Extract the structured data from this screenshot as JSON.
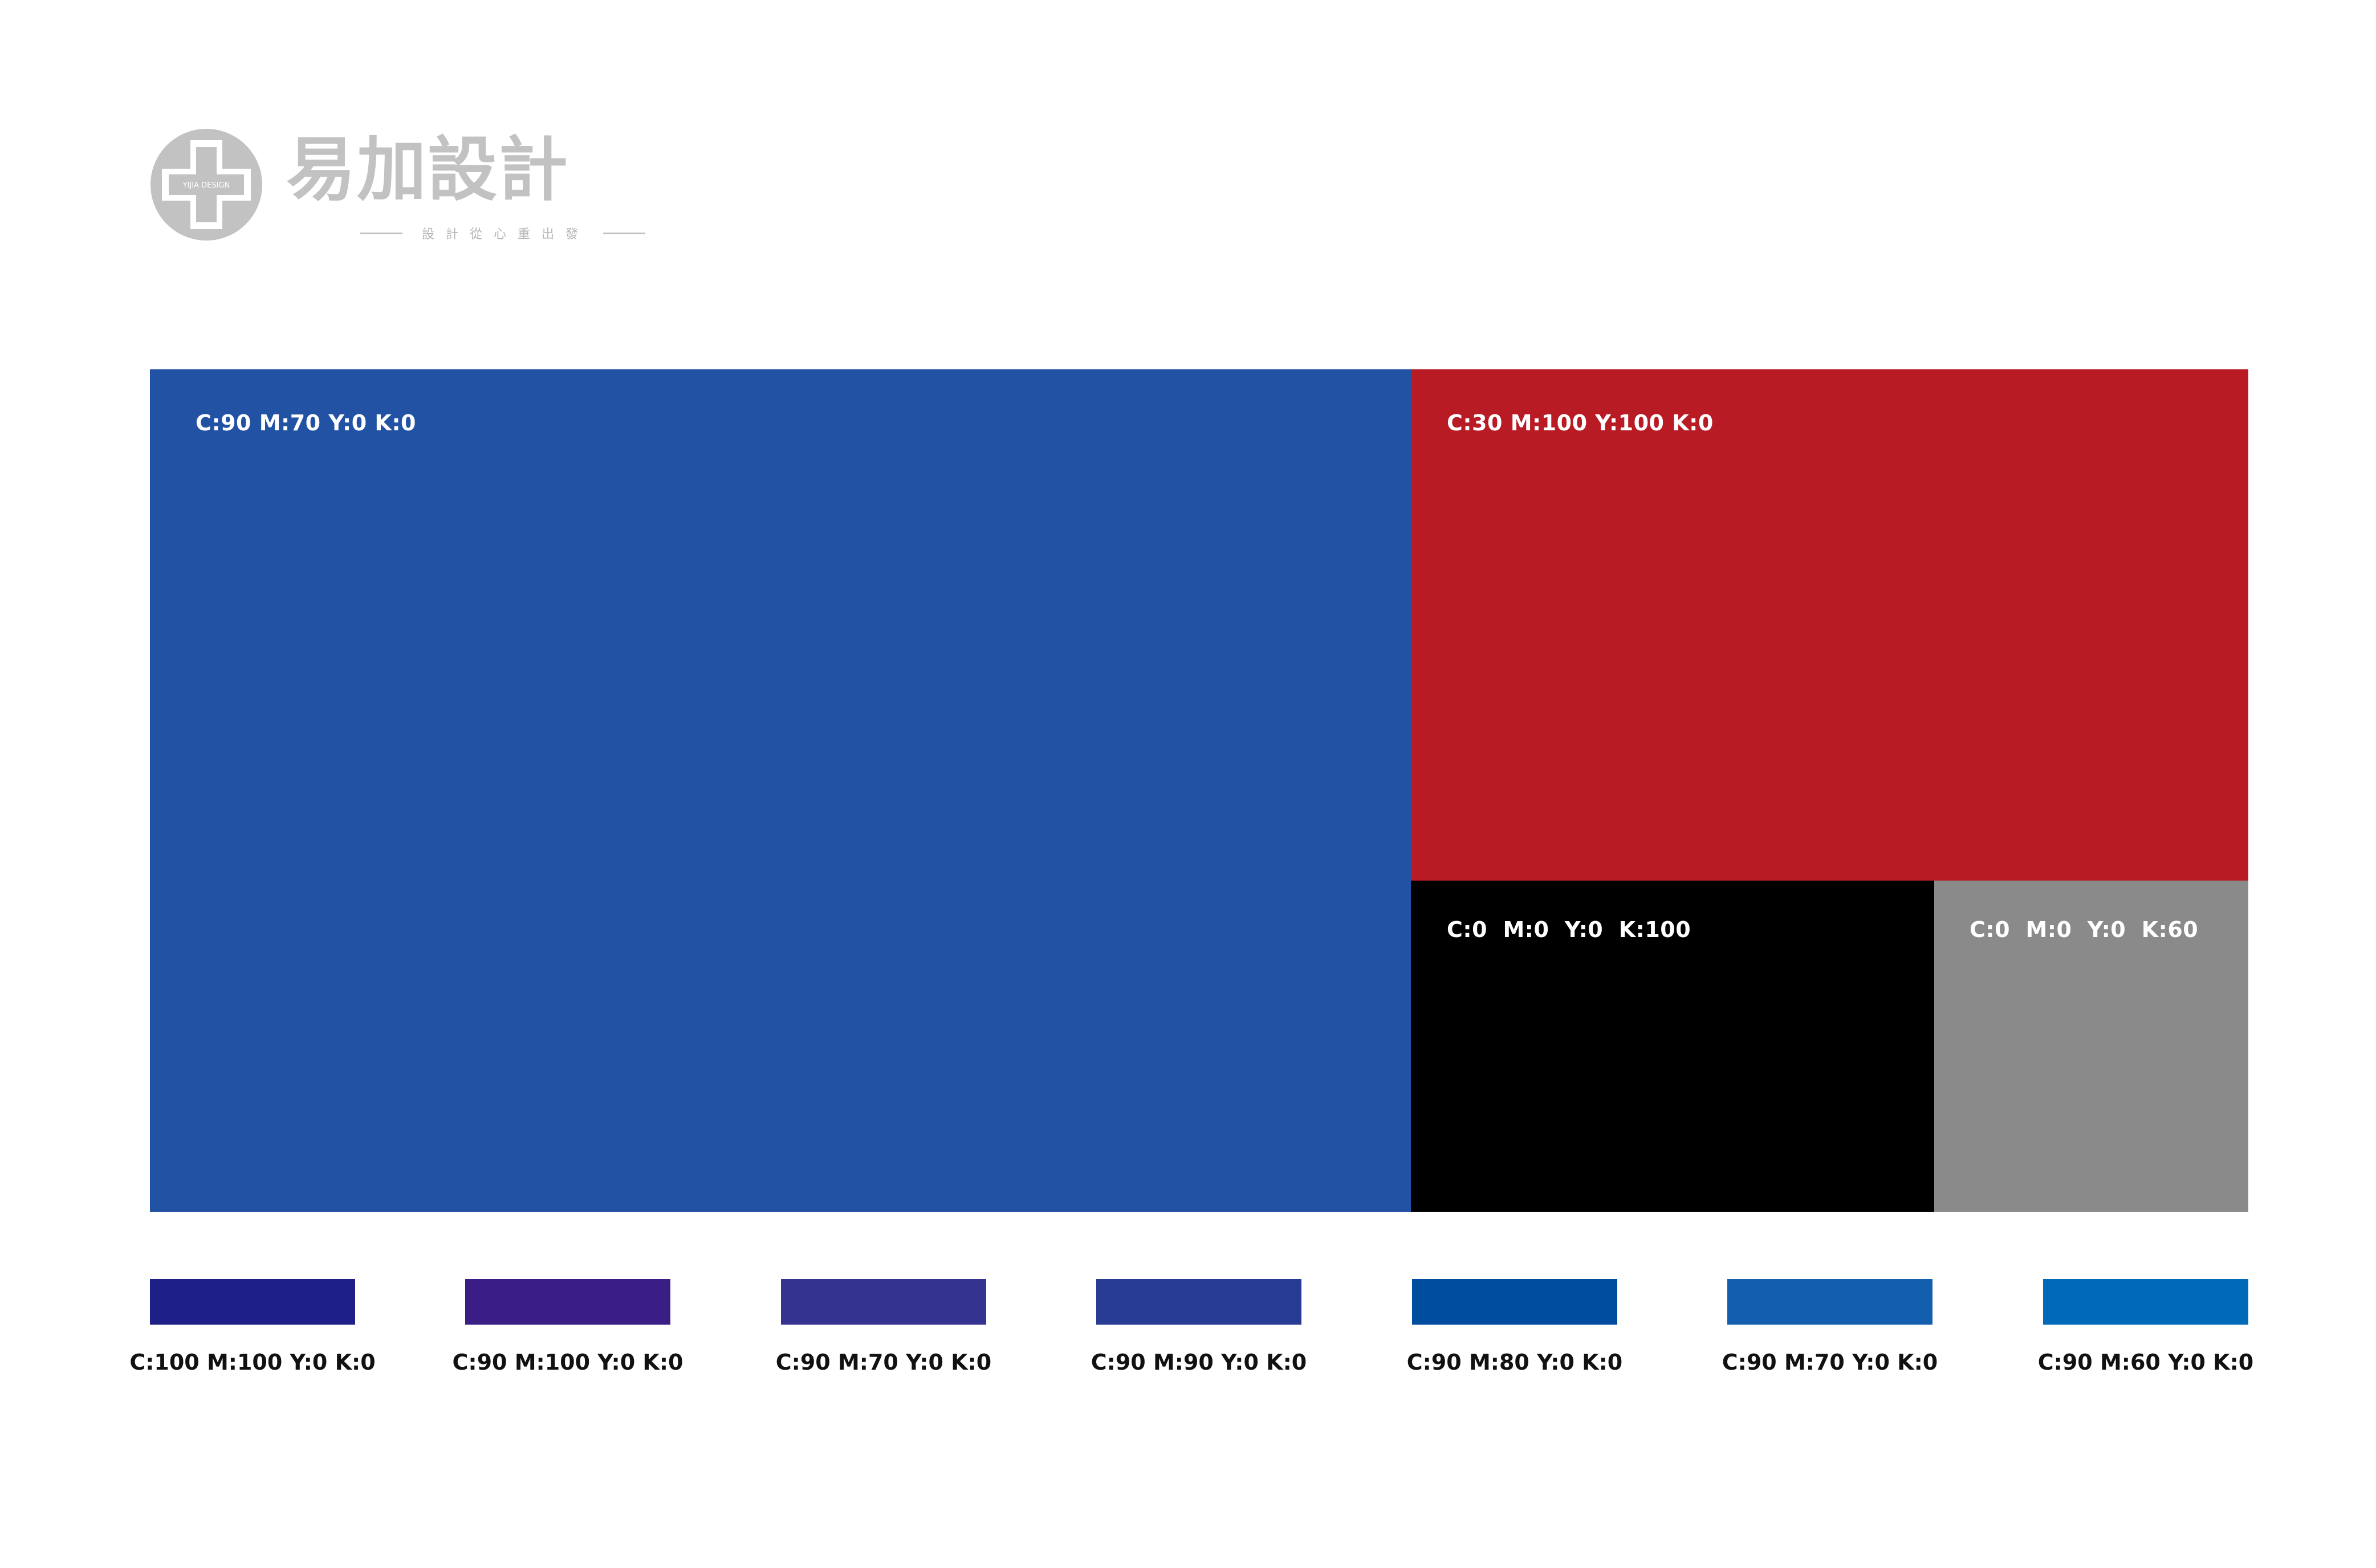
{
  "logo": {
    "badge_text": "YIJIA DESIGN",
    "name": "易加設計",
    "tagline": "設計從心重出發",
    "color": "#c2c2c2"
  },
  "blocks": {
    "blue": {
      "label": "C:90 M:70 Y:0 K:0",
      "color": "#2152a3"
    },
    "red": {
      "label": "C:30 M:100 Y:100 K:0",
      "color": "#b81b24"
    },
    "black": {
      "label": "C:0  M:0  Y:0  K:100",
      "color": "#000000"
    },
    "gray": {
      "label": "C:0  M:0  Y:0  K:60",
      "color": "#8a8a8a"
    }
  },
  "swatches": [
    {
      "label": "C:100 M:100 Y:0 K:0",
      "color": "#1e1f87"
    },
    {
      "label": "C:90 M:100 Y:0 K:0",
      "color": "#3b1d86"
    },
    {
      "label": "C:90 M:70 Y:0 K:0",
      "color": "#343390"
    },
    {
      "label": "C:90 M:90 Y:0 K:0",
      "color": "#283c96"
    },
    {
      "label": "C:90 M:80 Y:0 K:0",
      "color": "#004da0"
    },
    {
      "label": "C:90 M:70 Y:0 K:0",
      "color": "#135ead"
    },
    {
      "label": "C:90 M:60 Y:0 K:0",
      "color": "#006ab8"
    }
  ]
}
